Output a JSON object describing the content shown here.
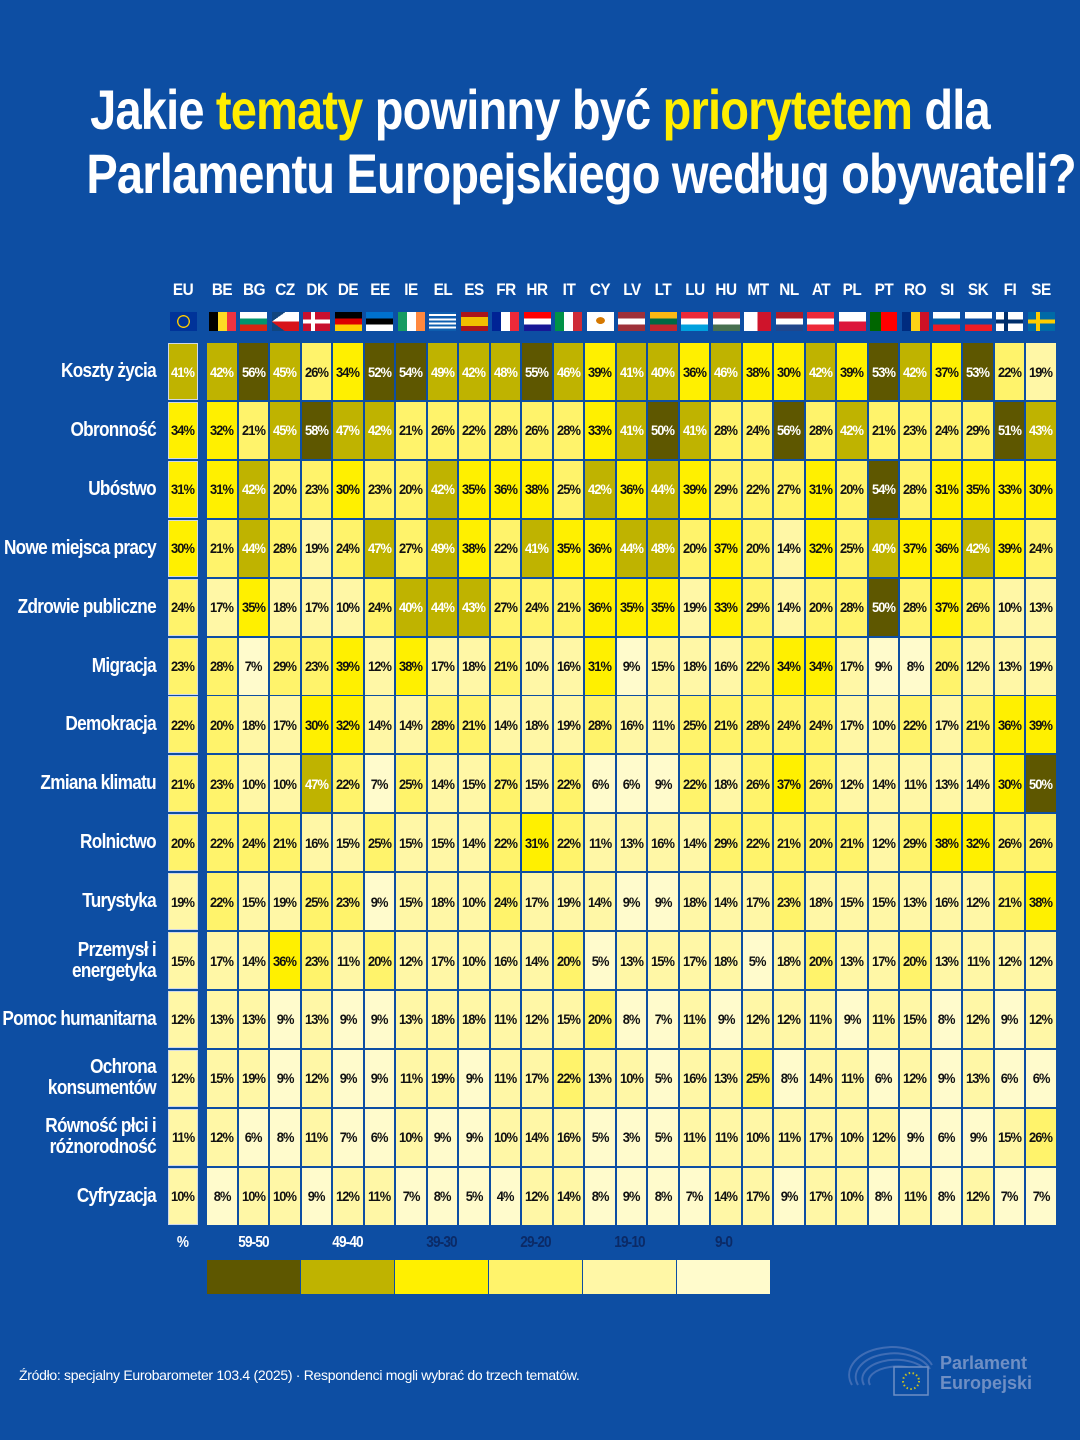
{
  "title": {
    "line1": [
      {
        "text": "Jakie ",
        "hl": false
      },
      {
        "text": "tematy",
        "hl": true
      },
      {
        "text": " powinny być ",
        "hl": false
      },
      {
        "text": "priorytetem",
        "hl": true
      },
      {
        "text": " dla",
        "hl": false
      }
    ],
    "line2": "Parlamentu Europejskiego według obywateli?"
  },
  "colors": {
    "background": "#0d4ea3",
    "highlight": "#ffed00"
  },
  "chart_data": {
    "type": "heatmap",
    "title": "Jakie tematy powinny być priorytetem dla Parlamentu Europejskiego według obywateli?",
    "unit": "%",
    "eu_column": {
      "code": "EU",
      "flag": {
        "type": "eu",
        "colors": [
          "#003399",
          "#ffcc00"
        ]
      }
    },
    "countries": [
      {
        "code": "BE",
        "flag": {
          "type": "v",
          "colors": [
            "#000000",
            "#fdda24",
            "#ef3340"
          ]
        }
      },
      {
        "code": "BG",
        "flag": {
          "type": "h",
          "colors": [
            "#ffffff",
            "#00966e",
            "#d62612"
          ]
        }
      },
      {
        "code": "CZ",
        "flag": {
          "type": "cz",
          "colors": [
            "#ffffff",
            "#d7141a",
            "#11457e"
          ]
        }
      },
      {
        "code": "DK",
        "flag": {
          "type": "nordic",
          "colors": [
            "#c8102e",
            "#ffffff"
          ]
        }
      },
      {
        "code": "DE",
        "flag": {
          "type": "h",
          "colors": [
            "#000000",
            "#dd0000",
            "#ffce00"
          ]
        }
      },
      {
        "code": "EE",
        "flag": {
          "type": "h",
          "colors": [
            "#0072ce",
            "#000000",
            "#ffffff"
          ]
        }
      },
      {
        "code": "IE",
        "flag": {
          "type": "v",
          "colors": [
            "#169b62",
            "#ffffff",
            "#ff883e"
          ]
        }
      },
      {
        "code": "EL",
        "flag": {
          "type": "gr",
          "colors": [
            "#0d5eaf",
            "#ffffff"
          ]
        }
      },
      {
        "code": "ES",
        "flag": {
          "type": "es",
          "colors": [
            "#aa151b",
            "#f1bf00"
          ]
        }
      },
      {
        "code": "FR",
        "flag": {
          "type": "v",
          "colors": [
            "#002395",
            "#ffffff",
            "#ed2939"
          ]
        }
      },
      {
        "code": "HR",
        "flag": {
          "type": "h",
          "colors": [
            "#ff0000",
            "#ffffff",
            "#171796"
          ]
        }
      },
      {
        "code": "IT",
        "flag": {
          "type": "v",
          "colors": [
            "#009246",
            "#ffffff",
            "#ce2b37"
          ]
        }
      },
      {
        "code": "CY",
        "flag": {
          "type": "cy",
          "colors": [
            "#ffffff",
            "#d57800"
          ]
        }
      },
      {
        "code": "LV",
        "flag": {
          "type": "h",
          "colors": [
            "#9e3039",
            "#ffffff",
            "#9e3039"
          ]
        }
      },
      {
        "code": "LT",
        "flag": {
          "type": "h",
          "colors": [
            "#fdb913",
            "#006a44",
            "#c1272d"
          ]
        }
      },
      {
        "code": "LU",
        "flag": {
          "type": "h",
          "colors": [
            "#ed2939",
            "#ffffff",
            "#00a1de"
          ]
        }
      },
      {
        "code": "HU",
        "flag": {
          "type": "h",
          "colors": [
            "#ce2939",
            "#ffffff",
            "#477050"
          ]
        }
      },
      {
        "code": "MT",
        "flag": {
          "type": "v",
          "colors": [
            "#ffffff",
            "#cf142b"
          ]
        }
      },
      {
        "code": "NL",
        "flag": {
          "type": "h",
          "colors": [
            "#ae1c28",
            "#ffffff",
            "#21468b"
          ]
        }
      },
      {
        "code": "AT",
        "flag": {
          "type": "h",
          "colors": [
            "#ed2939",
            "#ffffff",
            "#ed2939"
          ]
        }
      },
      {
        "code": "PL",
        "flag": {
          "type": "h",
          "colors": [
            "#ffffff",
            "#dc143c"
          ]
        }
      },
      {
        "code": "PT",
        "flag": {
          "type": "pt",
          "colors": [
            "#006600",
            "#ff0000"
          ]
        }
      },
      {
        "code": "RO",
        "flag": {
          "type": "v",
          "colors": [
            "#002b7f",
            "#fcd116",
            "#ce1126"
          ]
        }
      },
      {
        "code": "SI",
        "flag": {
          "type": "h",
          "colors": [
            "#ffffff",
            "#005da4",
            "#ed1c24"
          ]
        }
      },
      {
        "code": "SK",
        "flag": {
          "type": "h",
          "colors": [
            "#ffffff",
            "#0b4ea2",
            "#ee1c25"
          ]
        }
      },
      {
        "code": "FI",
        "flag": {
          "type": "nordic",
          "colors": [
            "#ffffff",
            "#002f6c"
          ]
        }
      },
      {
        "code": "SE",
        "flag": {
          "type": "nordic",
          "colors": [
            "#006aa7",
            "#fecc00"
          ]
        }
      }
    ],
    "rows": [
      {
        "label": [
          "Koszty życia"
        ],
        "eu": 41,
        "values": [
          42,
          56,
          45,
          26,
          34,
          52,
          54,
          49,
          42,
          48,
          55,
          46,
          39,
          41,
          40,
          36,
          46,
          38,
          30,
          42,
          39,
          53,
          42,
          37,
          53,
          22,
          19
        ]
      },
      {
        "label": [
          "Obronność"
        ],
        "eu": 34,
        "values": [
          32,
          21,
          45,
          58,
          47,
          42,
          21,
          26,
          22,
          28,
          26,
          28,
          33,
          41,
          50,
          41,
          28,
          24,
          56,
          28,
          42,
          21,
          23,
          24,
          29,
          51,
          43
        ]
      },
      {
        "label": [
          "Ubóstwo"
        ],
        "eu": 31,
        "values": [
          31,
          42,
          20,
          23,
          30,
          23,
          20,
          42,
          35,
          36,
          38,
          25,
          42,
          36,
          44,
          39,
          29,
          22,
          27,
          31,
          20,
          54,
          28,
          31,
          35,
          33,
          30
        ]
      },
      {
        "label": [
          "Nowe miejsca pracy"
        ],
        "eu": 30,
        "values": [
          21,
          44,
          28,
          19,
          24,
          47,
          27,
          49,
          38,
          22,
          41,
          35,
          36,
          44,
          48,
          20,
          37,
          20,
          14,
          32,
          25,
          40,
          37,
          36,
          42,
          39,
          24
        ]
      },
      {
        "label": [
          "Zdrowie publiczne"
        ],
        "eu": 24,
        "values": [
          17,
          35,
          18,
          17,
          10,
          24,
          40,
          44,
          43,
          27,
          24,
          21,
          36,
          35,
          35,
          19,
          33,
          29,
          14,
          20,
          28,
          50,
          28,
          37,
          26,
          10,
          13
        ]
      },
      {
        "label": [
          "Migracja"
        ],
        "eu": 23,
        "values": [
          28,
          7,
          29,
          23,
          39,
          12,
          38,
          17,
          18,
          21,
          10,
          16,
          31,
          9,
          15,
          18,
          16,
          22,
          34,
          34,
          17,
          9,
          8,
          20,
          12,
          13,
          19
        ]
      },
      {
        "label": [
          "Demokracja"
        ],
        "eu": 22,
        "values": [
          20,
          18,
          17,
          30,
          32,
          14,
          14,
          28,
          21,
          14,
          18,
          19,
          28,
          16,
          11,
          25,
          21,
          28,
          24,
          24,
          17,
          10,
          22,
          17,
          21,
          36,
          39
        ]
      },
      {
        "label": [
          "Zmiana klimatu"
        ],
        "eu": 21,
        "values": [
          23,
          10,
          10,
          47,
          22,
          7,
          25,
          14,
          15,
          27,
          15,
          22,
          6,
          6,
          9,
          22,
          18,
          26,
          37,
          26,
          12,
          14,
          11,
          13,
          14,
          30,
          50
        ]
      },
      {
        "label": [
          "Rolnictwo"
        ],
        "eu": 20,
        "values": [
          22,
          24,
          21,
          16,
          15,
          25,
          15,
          15,
          14,
          22,
          31,
          22,
          11,
          13,
          16,
          14,
          29,
          22,
          21,
          20,
          21,
          12,
          29,
          38,
          32,
          26,
          26
        ]
      },
      {
        "label": [
          "Turystyka"
        ],
        "eu": 19,
        "values": [
          22,
          15,
          19,
          25,
          23,
          9,
          15,
          18,
          10,
          24,
          17,
          19,
          14,
          9,
          9,
          18,
          14,
          17,
          23,
          18,
          15,
          15,
          13,
          16,
          12,
          21,
          38
        ]
      },
      {
        "label": [
          "Przemysł i",
          "energetyka"
        ],
        "eu": 15,
        "values": [
          17,
          14,
          36,
          23,
          11,
          20,
          12,
          17,
          10,
          16,
          14,
          20,
          5,
          13,
          15,
          17,
          18,
          5,
          18,
          20,
          13,
          17,
          20,
          13,
          11,
          12,
          12
        ]
      },
      {
        "label": [
          "Pomoc humanitarna"
        ],
        "eu": 12,
        "values": [
          13,
          13,
          9,
          13,
          9,
          9,
          13,
          18,
          18,
          11,
          12,
          15,
          20,
          8,
          7,
          11,
          9,
          12,
          12,
          11,
          9,
          11,
          15,
          8,
          12,
          9,
          12
        ]
      },
      {
        "label": [
          "Ochrona",
          "konsumentów"
        ],
        "eu": 12,
        "values": [
          15,
          19,
          9,
          12,
          9,
          9,
          11,
          19,
          9,
          11,
          17,
          22,
          13,
          10,
          5,
          16,
          13,
          25,
          8,
          14,
          11,
          6,
          12,
          9,
          13,
          6,
          6
        ]
      },
      {
        "label": [
          "Równość płci i",
          "różnorodność"
        ],
        "eu": 11,
        "values": [
          12,
          6,
          8,
          11,
          7,
          6,
          10,
          9,
          9,
          10,
          14,
          16,
          5,
          3,
          5,
          11,
          11,
          10,
          11,
          17,
          10,
          12,
          9,
          6,
          9,
          15,
          26
        ]
      },
      {
        "label": [
          "Cyfryzacja"
        ],
        "eu": 10,
        "values": [
          8,
          10,
          10,
          9,
          12,
          11,
          7,
          8,
          5,
          4,
          12,
          14,
          8,
          9,
          8,
          7,
          14,
          17,
          9,
          17,
          10,
          8,
          11,
          8,
          12,
          7,
          7
        ]
      }
    ],
    "legend": {
      "unit_label": "%",
      "bins": [
        {
          "label": "59-50",
          "min": 50,
          "color": "#5e5700",
          "text": "#ffffff"
        },
        {
          "label": "49-40",
          "min": 40,
          "color": "#bfb300",
          "text": "#ffffff"
        },
        {
          "label": "39-30",
          "min": 30,
          "color": "#fff000",
          "text": "#0b2a66"
        },
        {
          "label": "29-20",
          "min": 20,
          "color": "#fff36b",
          "text": "#0b2a66"
        },
        {
          "label": "19-10",
          "min": 10,
          "color": "#fff7a6",
          "text": "#0b2a66"
        },
        {
          "label": "9-0",
          "min": 0,
          "color": "#fffbcc",
          "text": "#0b2a66"
        }
      ]
    }
  },
  "footer": {
    "source": "Źródło: specjalny Eurobarometer 103.4 (2025) · Respondenci mogli wybrać do trzech tematów."
  },
  "logo": {
    "line1": "Parlament",
    "line2": "Europejski"
  }
}
